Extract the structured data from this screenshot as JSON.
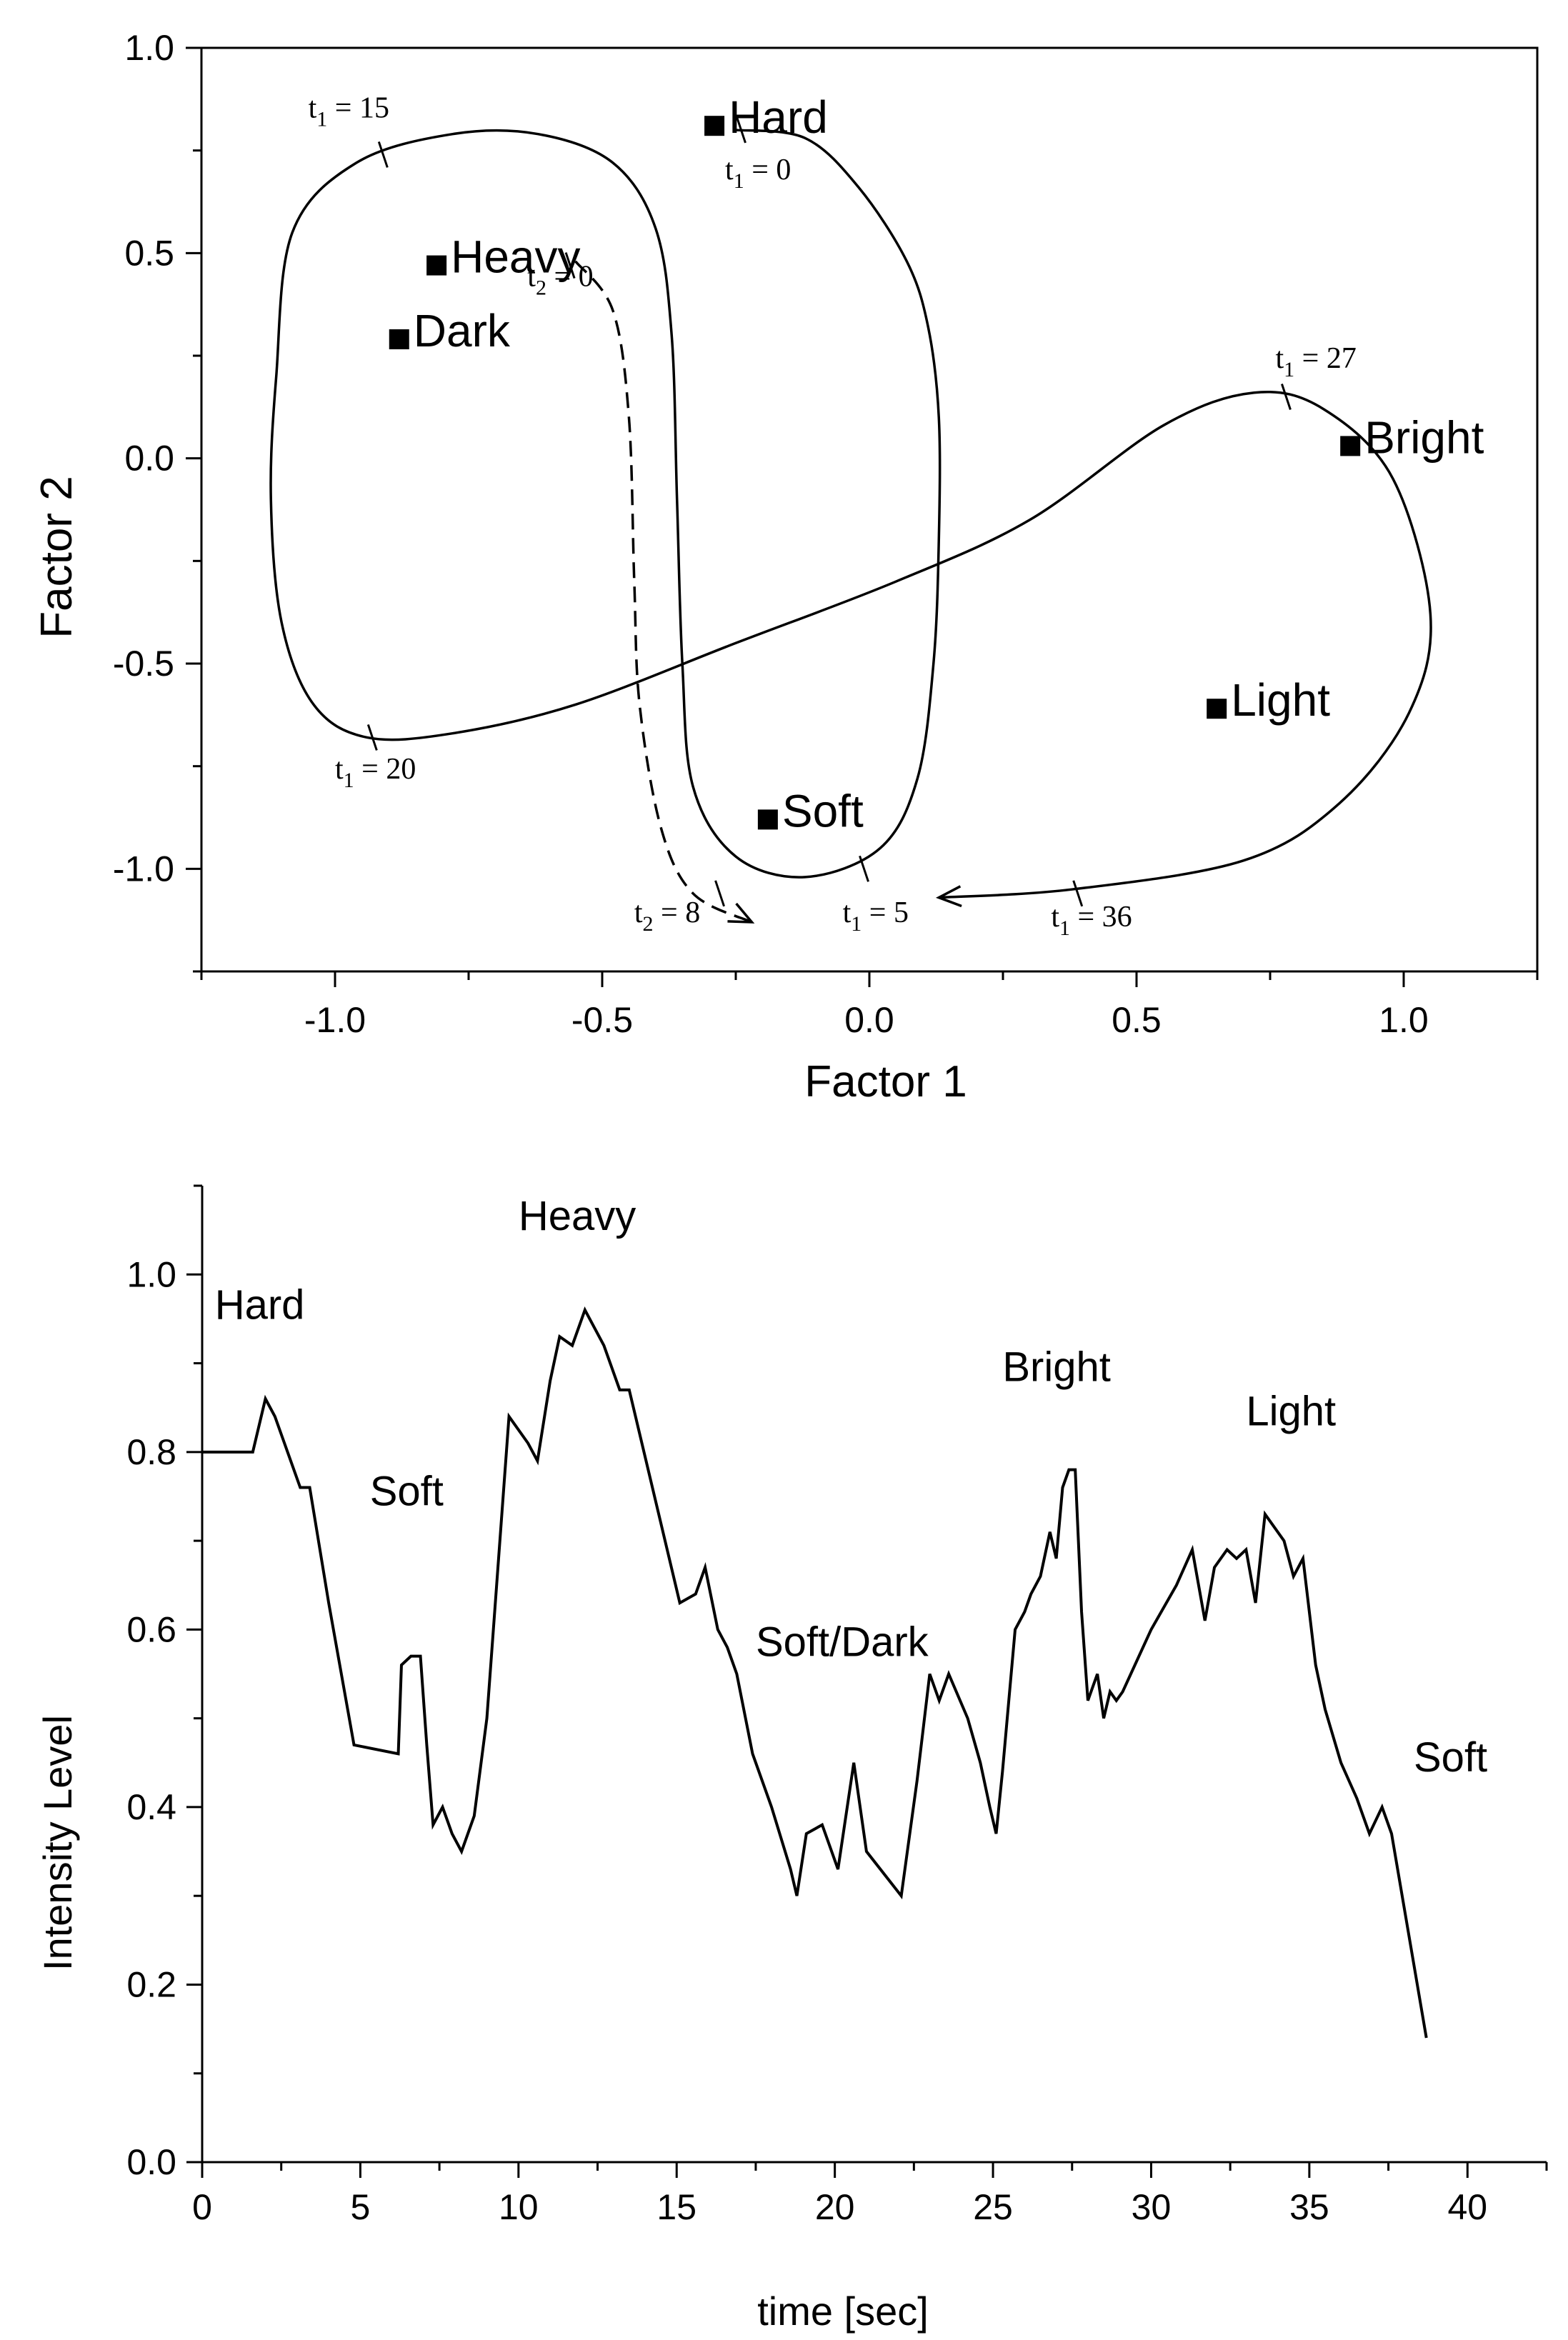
{
  "chart_data": [
    {
      "type": "scatter",
      "xlabel": "Factor 1",
      "ylabel": "Factor 2",
      "xlim": [
        -1.25,
        1.25
      ],
      "ylim": [
        -1.25,
        1.0
      ],
      "xticks": [
        "-1.0",
        "-0.5",
        "0.0",
        "0.5",
        "1.0"
      ],
      "xtick_values": [
        -1.0,
        -0.5,
        0.0,
        0.5,
        1.0
      ],
      "yticks": [
        "1.0",
        "0.5",
        "0.0",
        "-0.5",
        "-1.0"
      ],
      "ytick_values": [
        1.0,
        0.5,
        0.0,
        -0.5,
        -1.0
      ],
      "points": [
        {
          "label": "Hard",
          "x": -0.29,
          "y": 0.81
        },
        {
          "label": "Heavy",
          "x": -0.81,
          "y": 0.47
        },
        {
          "label": "Dark",
          "x": -0.88,
          "y": 0.29
        },
        {
          "label": "Bright",
          "x": 0.9,
          "y": 0.03
        },
        {
          "label": "Light",
          "x": 0.65,
          "y": -0.61
        },
        {
          "label": "Soft",
          "x": -0.19,
          "y": -0.88
        }
      ],
      "trajectory_t1": [
        [
          -0.25,
          0.8
        ],
        [
          -0.12,
          0.78
        ],
        [
          -0.02,
          0.66
        ],
        [
          0.07,
          0.48
        ],
        [
          0.11,
          0.32
        ],
        [
          0.13,
          0.1
        ],
        [
          0.13,
          -0.2
        ],
        [
          0.12,
          -0.5
        ],
        [
          0.09,
          -0.78
        ],
        [
          0.02,
          -0.95
        ],
        [
          -0.12,
          -1.02
        ],
        [
          -0.25,
          -0.97
        ],
        [
          -0.33,
          -0.8
        ],
        [
          -0.35,
          -0.5
        ],
        [
          -0.36,
          -0.1
        ],
        [
          -0.37,
          0.3
        ],
        [
          -0.4,
          0.56
        ],
        [
          -0.48,
          0.72
        ],
        [
          -0.62,
          0.79
        ],
        [
          -0.78,
          0.79
        ],
        [
          -0.96,
          0.72
        ],
        [
          -1.08,
          0.55
        ],
        [
          -1.11,
          0.2
        ],
        [
          -1.12,
          -0.1
        ],
        [
          -1.1,
          -0.4
        ],
        [
          -1.04,
          -0.6
        ],
        [
          -0.94,
          -0.68
        ],
        [
          -0.78,
          -0.67
        ],
        [
          -0.55,
          -0.6
        ],
        [
          -0.25,
          -0.45
        ],
        [
          0.05,
          -0.3
        ],
        [
          0.3,
          -0.15
        ],
        [
          0.55,
          0.08
        ],
        [
          0.72,
          0.16
        ],
        [
          0.85,
          0.12
        ],
        [
          0.98,
          -0.05
        ],
        [
          1.05,
          -0.38
        ],
        [
          1.01,
          -0.62
        ],
        [
          0.88,
          -0.84
        ],
        [
          0.7,
          -0.98
        ],
        [
          0.38,
          -1.05
        ],
        [
          0.13,
          -1.07
        ]
      ],
      "trajectory_t2": [
        [
          -0.55,
          0.48
        ],
        [
          -0.48,
          0.36
        ],
        [
          -0.45,
          0.1
        ],
        [
          -0.44,
          -0.3
        ],
        [
          -0.43,
          -0.6
        ],
        [
          -0.39,
          -0.9
        ],
        [
          -0.33,
          -1.06
        ],
        [
          -0.22,
          -1.13
        ]
      ],
      "annotations": [
        {
          "text": "t",
          "sub": "1",
          "rest": " = 15",
          "x": -1.05,
          "y": 0.83,
          "mark_x": -0.91,
          "mark_y": 0.74
        },
        {
          "text": "t",
          "sub": "1",
          "rest": " = 0",
          "x": -0.27,
          "y": 0.68,
          "mark_x": -0.24,
          "mark_y": 0.8
        },
        {
          "text": "t",
          "sub": "2",
          "rest": " = 0",
          "x": -0.64,
          "y": 0.42,
          "mark_x": -0.56,
          "mark_y": 0.47
        },
        {
          "text": "t",
          "sub": "1",
          "rest": " = 27",
          "x": 0.76,
          "y": 0.22,
          "mark_x": 0.78,
          "mark_y": 0.15
        },
        {
          "text": "t",
          "sub": "1",
          "rest": " = 20",
          "x": -1.0,
          "y": -0.78,
          "mark_x": -0.93,
          "mark_y": -0.68
        },
        {
          "text": "t",
          "sub": "2",
          "rest": " = 8",
          "x": -0.44,
          "y": -1.13,
          "mark_x": -0.28,
          "mark_y": -1.06
        },
        {
          "text": "t",
          "sub": "1",
          "rest": " = 5",
          "x": -0.05,
          "y": -1.13,
          "mark_x": -0.01,
          "mark_y": -1.0
        },
        {
          "text": "t",
          "sub": "1",
          "rest": " = 36",
          "x": 0.34,
          "y": -1.14,
          "mark_x": 0.39,
          "mark_y": -1.06
        }
      ]
    },
    {
      "type": "line",
      "xlabel": "time [sec]",
      "ylabel": "Intensity Level",
      "xlim": [
        0,
        42.5
      ],
      "ylim": [
        0,
        1.1
      ],
      "xticks": [
        "0",
        "5",
        "10",
        "15",
        "20",
        "25",
        "30",
        "35",
        "40"
      ],
      "xtick_values": [
        0,
        5,
        10,
        15,
        20,
        25,
        30,
        35,
        40
      ],
      "yticks": [
        "1.0",
        "0.8",
        "0.6",
        "0.4",
        "0.2",
        "0.0"
      ],
      "ytick_values": [
        1.0,
        0.8,
        0.6,
        0.4,
        0.2,
        0.0
      ],
      "x": [
        0,
        1.6,
        2.0,
        2.3,
        2.6,
        3.1,
        3.4,
        4.0,
        4.8,
        6.2,
        6.3,
        6.6,
        6.9,
        7.1,
        7.3,
        7.6,
        7.9,
        8.2,
        8.6,
        9.0,
        9.7,
        10.3,
        10.6,
        11.0,
        11.3,
        11.7,
        12.1,
        12.7,
        13.2,
        13.5,
        15.1,
        15.6,
        15.9,
        16.3,
        16.6,
        16.9,
        17.4,
        18.0,
        18.6,
        18.8,
        19.1,
        19.6,
        20.1,
        20.6,
        21.0,
        22.1,
        22.6,
        23.0,
        23.3,
        23.6,
        24.2,
        24.6,
        24.9,
        25.1,
        25.3,
        25.7,
        26.0,
        26.2,
        26.5,
        26.8,
        27.0,
        27.2,
        27.4,
        27.6,
        27.8,
        28.0,
        28.3,
        28.5,
        28.7,
        28.9,
        29.1,
        30.0,
        30.8,
        31.3,
        31.7,
        32.0,
        32.4,
        32.7,
        33.0,
        33.3,
        33.6,
        34.2,
        34.5,
        34.8,
        35.2,
        35.5,
        36.0,
        36.5,
        36.9,
        37.3,
        37.6,
        38.7
      ],
      "values": [
        0.8,
        0.8,
        0.86,
        0.84,
        0.81,
        0.76,
        0.76,
        0.63,
        0.47,
        0.46,
        0.56,
        0.57,
        0.57,
        0.47,
        0.38,
        0.4,
        0.37,
        0.35,
        0.39,
        0.5,
        0.84,
        0.81,
        0.79,
        0.88,
        0.93,
        0.92,
        0.96,
        0.92,
        0.87,
        0.87,
        0.63,
        0.64,
        0.67,
        0.6,
        0.58,
        0.55,
        0.46,
        0.4,
        0.33,
        0.3,
        0.37,
        0.38,
        0.33,
        0.45,
        0.35,
        0.3,
        0.43,
        0.55,
        0.52,
        0.55,
        0.5,
        0.45,
        0.4,
        0.37,
        0.44,
        0.6,
        0.62,
        0.64,
        0.66,
        0.71,
        0.68,
        0.76,
        0.78,
        0.78,
        0.62,
        0.52,
        0.55,
        0.5,
        0.53,
        0.52,
        0.53,
        0.6,
        0.65,
        0.69,
        0.61,
        0.67,
        0.69,
        0.68,
        0.69,
        0.63,
        0.73,
        0.7,
        0.66,
        0.68,
        0.56,
        0.51,
        0.45,
        0.41,
        0.37,
        0.4,
        0.37,
        0.14
      ],
      "region_labels": [
        {
          "text": "Hard",
          "x": 0.4,
          "y": 0.95
        },
        {
          "text": "Soft",
          "x": 5.3,
          "y": 0.74
        },
        {
          "text": "Heavy",
          "x": 10.0,
          "y": 1.05
        },
        {
          "text": "Soft/Dark",
          "x": 17.5,
          "y": 0.57
        },
        {
          "text": "Bright",
          "x": 25.3,
          "y": 0.88
        },
        {
          "text": "Light",
          "x": 33.0,
          "y": 0.83
        },
        {
          "text": "Soft",
          "x": 38.3,
          "y": 0.44
        }
      ]
    }
  ]
}
